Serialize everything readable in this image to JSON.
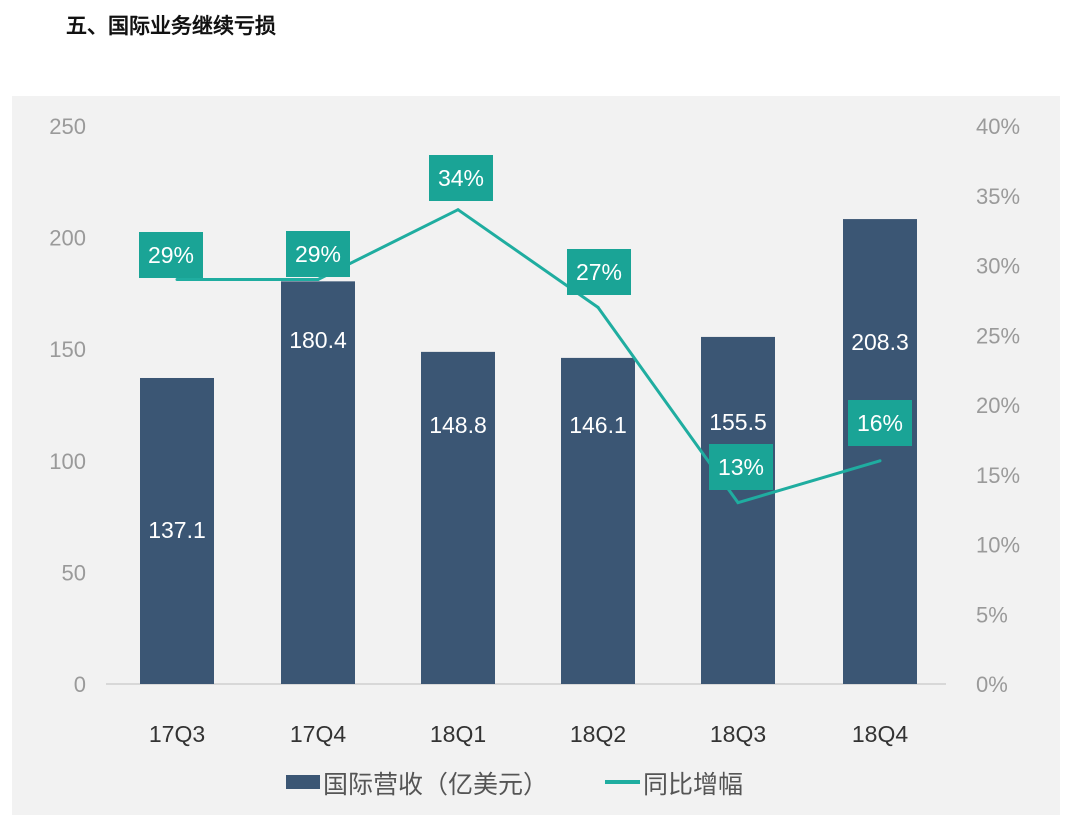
{
  "page_title": "五、国际业务继续亏损",
  "colors": {
    "bar": "#3b5674",
    "line": "#1fada0",
    "label_box": "#1aa496",
    "background": "#f2f2f2"
  },
  "chart_data": {
    "type": "bar+line",
    "categories": [
      "17Q3",
      "17Q4",
      "18Q1",
      "18Q2",
      "18Q3",
      "18Q4"
    ],
    "series": [
      {
        "name": "国际营收（亿美元）",
        "type": "bar",
        "axis": "left",
        "values": [
          137.1,
          180.4,
          148.8,
          146.1,
          155.5,
          208.3
        ],
        "labels": [
          "137.1",
          "180.4",
          "148.8",
          "146.1",
          "155.5",
          "208.3"
        ]
      },
      {
        "name": "同比增幅",
        "type": "line",
        "axis": "right",
        "values": [
          29,
          29,
          34,
          27,
          13,
          16
        ],
        "labels": [
          "29%",
          "29%",
          "34%",
          "27%",
          "13%",
          "16%"
        ]
      }
    ],
    "left_axis": {
      "range": [
        0,
        250
      ],
      "ticks": [
        "0",
        "50",
        "100",
        "150",
        "200",
        "250"
      ]
    },
    "right_axis": {
      "range": [
        0,
        40
      ],
      "ticks": [
        "0%",
        "5%",
        "10%",
        "15%",
        "20%",
        "25%",
        "30%",
        "35%",
        "40%"
      ]
    },
    "legend": {
      "placement": "bottom",
      "items": [
        "国际营收（亿美元）",
        "同比增幅"
      ]
    },
    "grid": false
  }
}
